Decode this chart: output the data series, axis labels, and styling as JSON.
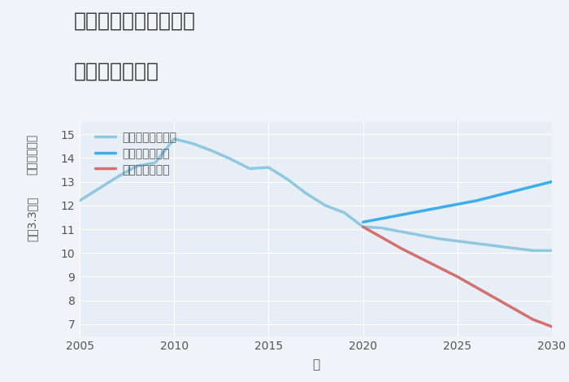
{
  "title_line1": "三重県鈴鹿市三宅町の",
  "title_line2": "土地の価格推移",
  "xlabel": "年",
  "ylabel_top": "単価（万円）",
  "ylabel_bottom": "坪（3.3㎡）",
  "ylim": [
    6.5,
    15.5
  ],
  "xlim": [
    2005,
    2030
  ],
  "yticks": [
    7,
    8,
    9,
    10,
    11,
    12,
    13,
    14,
    15
  ],
  "xticks": [
    2005,
    2010,
    2015,
    2020,
    2025,
    2030
  ],
  "background_color": "#f0f4f8",
  "plot_bg_color": "#e8eef5",
  "grid_color": "#ffffff",
  "good_scenario": {
    "x": [
      2020,
      2021,
      2022,
      2023,
      2024,
      2025,
      2026,
      2027,
      2028,
      2029,
      2030
    ],
    "y": [
      11.3,
      11.45,
      11.6,
      11.75,
      11.9,
      12.05,
      12.2,
      12.4,
      12.6,
      12.8,
      13.0
    ],
    "color": "#3daee9",
    "label": "グッドシナリオ",
    "linewidth": 2.5
  },
  "bad_scenario": {
    "x": [
      2020,
      2022,
      2025,
      2027,
      2029,
      2030
    ],
    "y": [
      11.1,
      10.2,
      9.0,
      8.1,
      7.2,
      6.9
    ],
    "color": "#d47070",
    "label": "バッドシナリオ",
    "linewidth": 2.5
  },
  "normal_scenario": {
    "x": [
      2005,
      2006,
      2007,
      2008,
      2009,
      2010,
      2011,
      2012,
      2013,
      2014,
      2015,
      2016,
      2017,
      2018,
      2019,
      2020,
      2021,
      2022,
      2023,
      2024,
      2025,
      2026,
      2027,
      2028,
      2029,
      2030
    ],
    "y": [
      12.2,
      12.7,
      13.2,
      13.65,
      13.8,
      14.8,
      14.6,
      14.3,
      13.95,
      13.55,
      13.6,
      13.1,
      12.5,
      12.0,
      11.7,
      11.1,
      11.05,
      10.9,
      10.75,
      10.6,
      10.5,
      10.4,
      10.3,
      10.2,
      10.1,
      10.1
    ],
    "color": "#90c8df",
    "label": "ノーマルシナリオ",
    "linewidth": 2.5
  },
  "legend_fontsize": 10,
  "title_fontsize": 18,
  "axis_fontsize": 10,
  "tick_color": "#555555",
  "label_color": "#555555"
}
